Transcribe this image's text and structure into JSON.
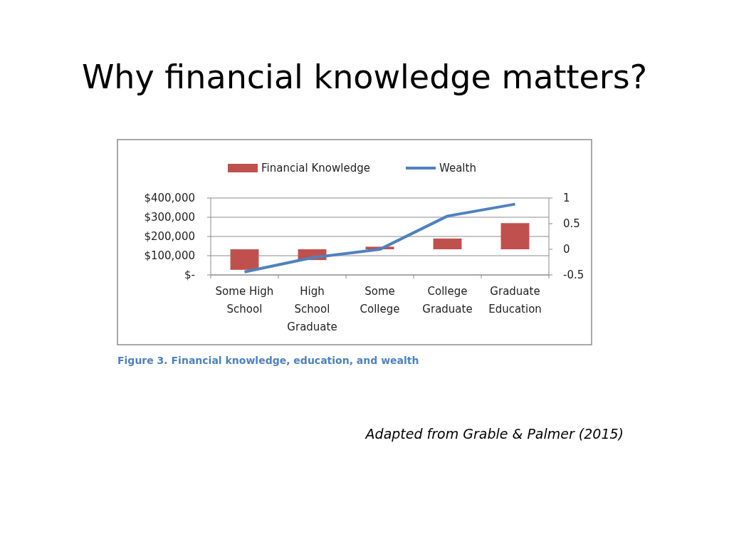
{
  "chart_data": {
    "type": "bar",
    "title": "Why financial knowledge matters?",
    "categories": [
      "Some High School",
      "High School Graduate",
      "Some College",
      "College Graduate",
      "Graduate Education"
    ],
    "series": [
      {
        "name": "Financial Knowledge",
        "color": "#c0504d",
        "axis": "y2",
        "values": [
          -0.4,
          -0.21,
          0.05,
          0.21,
          0.51
        ]
      },
      {
        "name": "Wealth",
        "type": "line",
        "color": "#4f81bd",
        "axis": "y",
        "values": [
          16000,
          90000,
          133000,
          306000,
          368000
        ]
      }
    ],
    "ylim": [
      0,
      400000
    ],
    "yticks": [
      {
        "value": 0,
        "label": "$-"
      },
      {
        "value": 100000,
        "label": "$100,000"
      },
      {
        "value": 200000,
        "label": "$200,000"
      },
      {
        "value": 300000,
        "label": "$300,000"
      },
      {
        "value": 400000,
        "label": "$400,000"
      }
    ],
    "y2lim": [
      -0.5,
      1
    ],
    "y2ticks": [
      -0.5,
      0,
      0.5,
      1
    ],
    "grid": "y",
    "legend": "top",
    "marker": "none",
    "annotations": [
      "Figure 3. Financial knowledge, education, and wealth",
      "Adapted from Grable & Palmer (2015)"
    ]
  }
}
